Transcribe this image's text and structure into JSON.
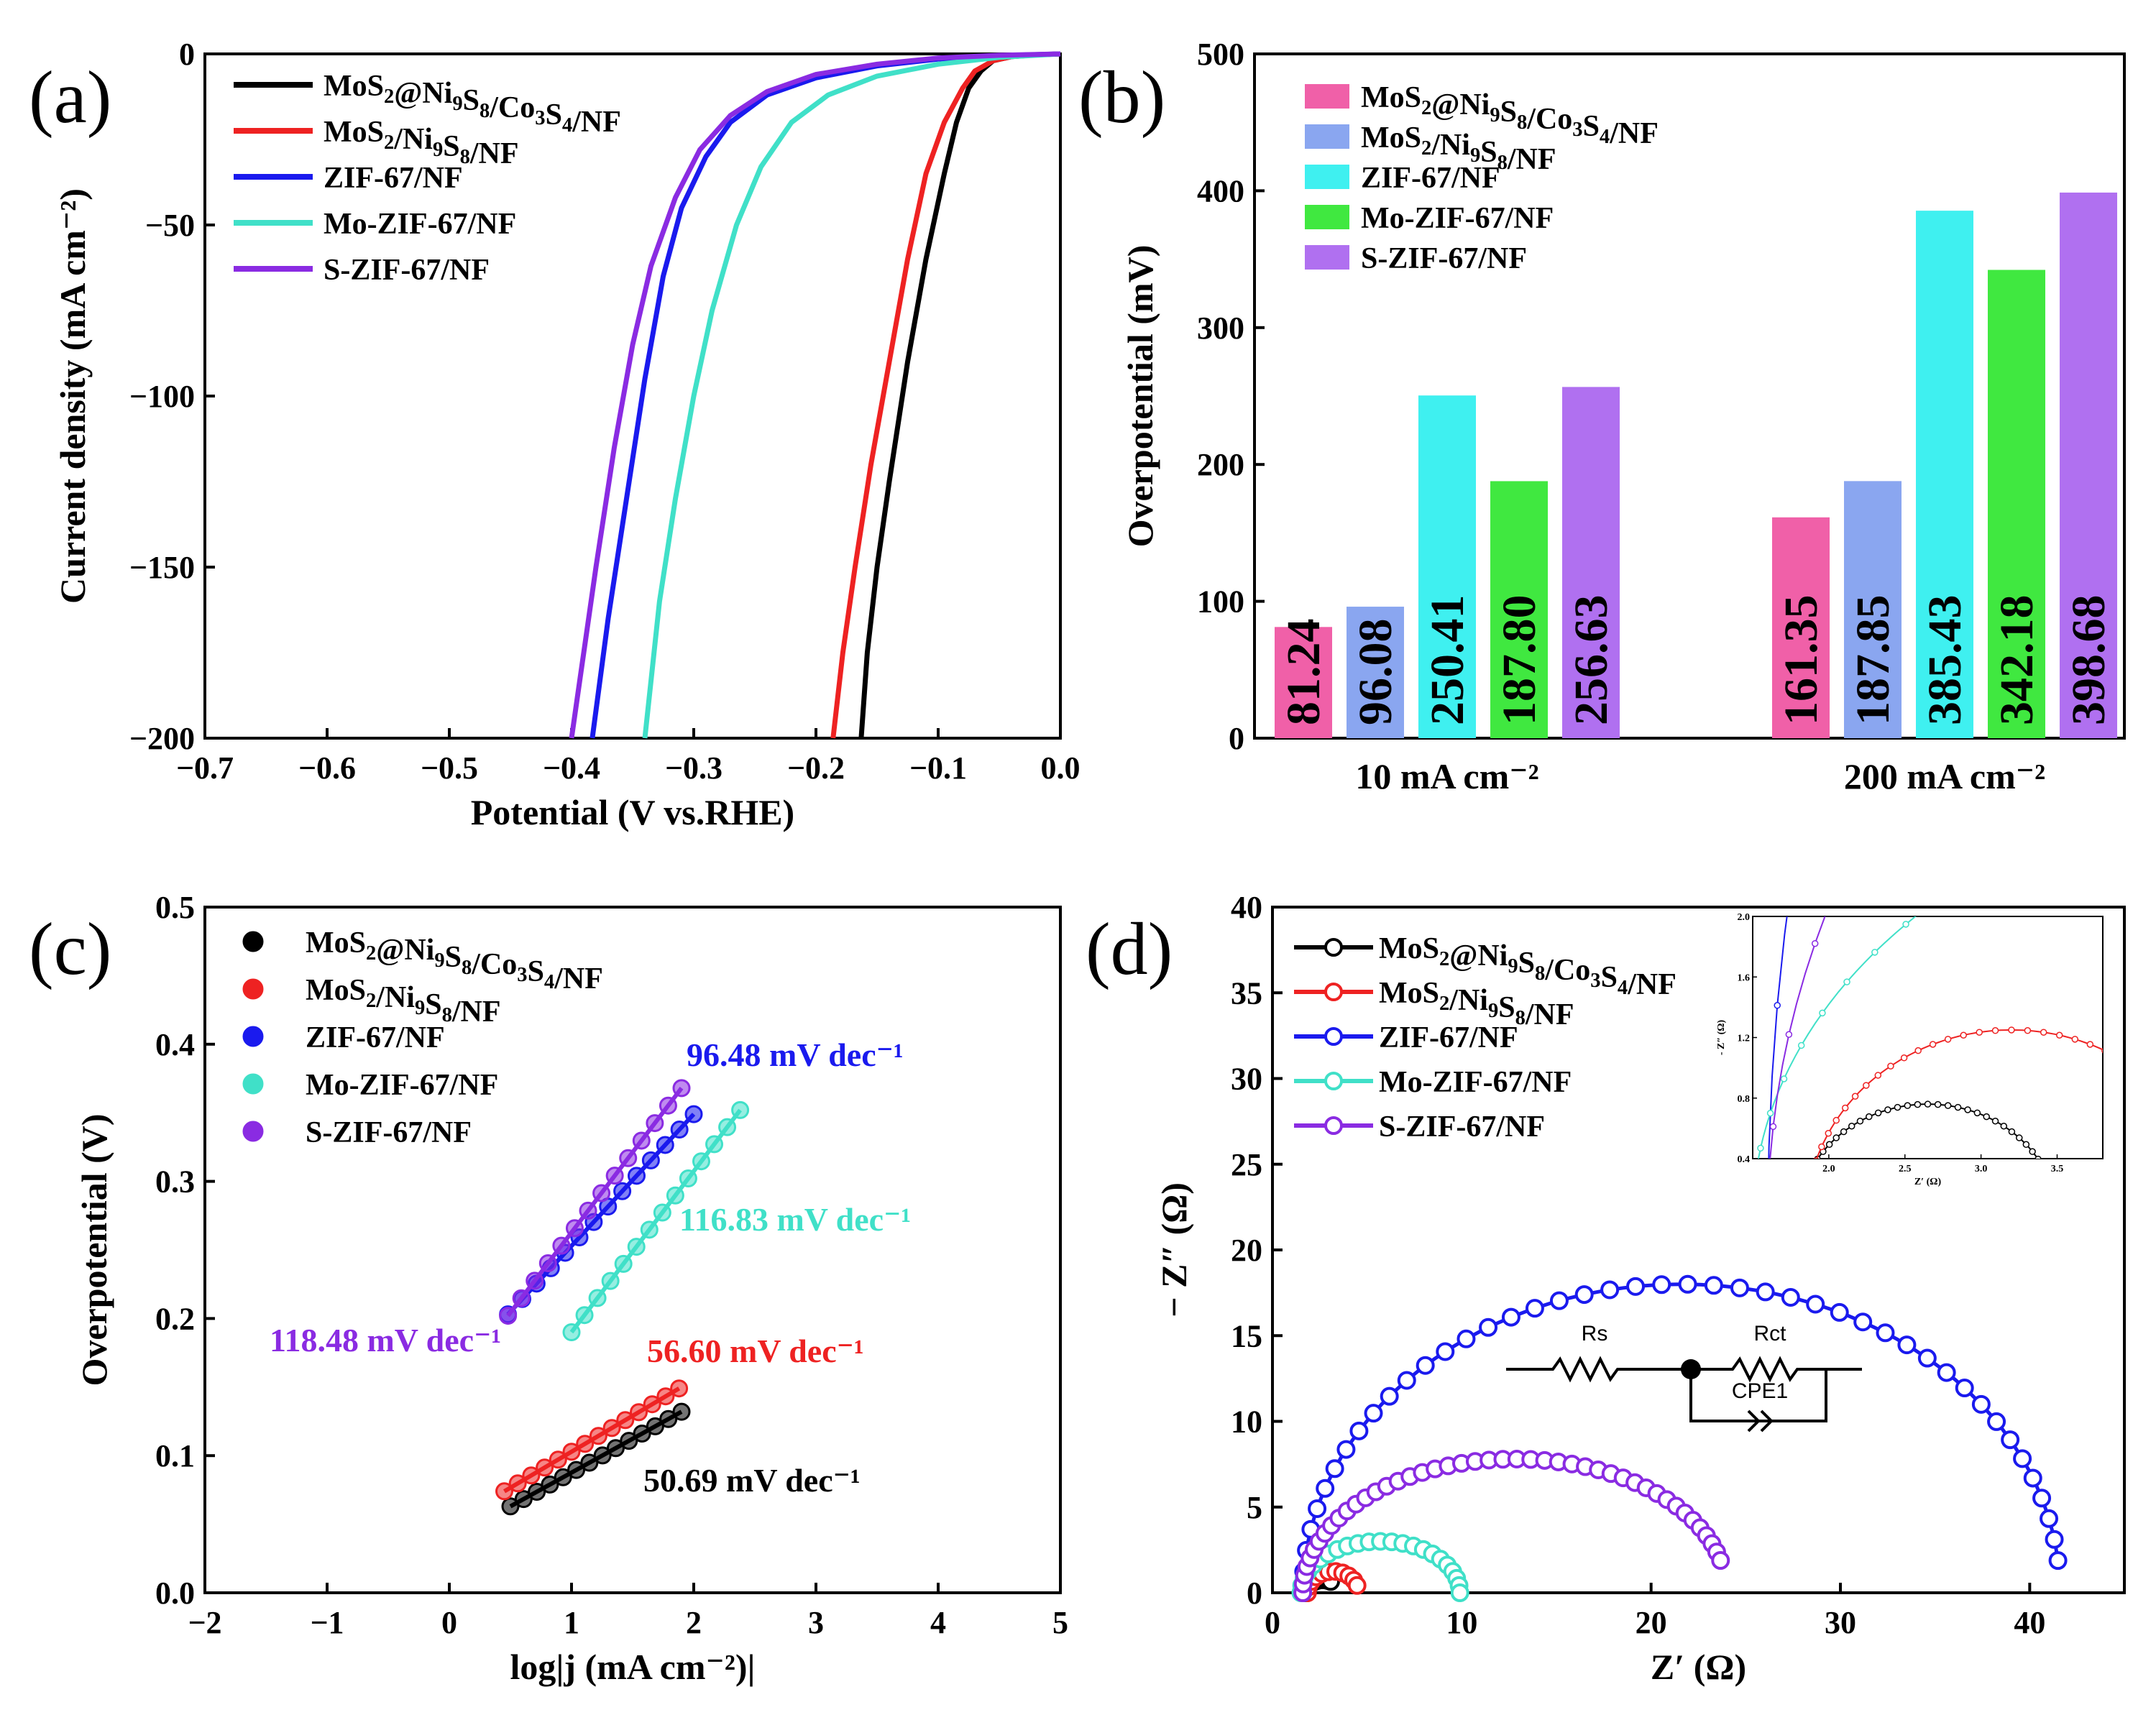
{
  "colors": {
    "black": "#000000",
    "red": "#ee2222",
    "blue": "#1a1aee",
    "cyan": "#40e0c8",
    "purple": "#8a2be2",
    "bar_pink": "#f060a8",
    "bar_blue": "#8aa6f0",
    "bar_cyan": "#3ff0f0",
    "bar_green": "#40e840",
    "bar_purple": "#b070f0"
  },
  "series_names": [
    "MoS2@Ni9S8/Co3S4/NF",
    "MoS2/Ni9S8/NF",
    "ZIF-67/NF",
    "Mo-ZIF-67/NF",
    "S-ZIF-67/NF"
  ],
  "chart_data": [
    {
      "panel": "a",
      "type": "line",
      "letter": "(a)",
      "xlabel": "Potential (V vs.RHE)",
      "ylabel": "Current density (mA cm⁻²)",
      "xlim": [
        -0.7,
        0.0
      ],
      "ylim": [
        -200,
        0
      ],
      "xticks": [
        -0.7,
        -0.6,
        -0.5,
        -0.4,
        -0.3,
        -0.2,
        -0.1,
        0.0
      ],
      "xtick_labels": [
        "−0.7",
        "−0.6",
        "−0.5",
        "−0.4",
        "−0.3",
        "−0.2",
        "−0.1",
        "0.0"
      ],
      "yticks": [
        0,
        -50,
        -100,
        -150,
        -200
      ],
      "ytick_labels": [
        "0",
        "−50",
        "−100",
        "−150",
        "−200"
      ],
      "series": [
        {
          "name": "MoS2@Ni9S8/Co3S4/NF",
          "color": "#000000",
          "points": [
            [
              0,
              0
            ],
            [
              -0.02,
              -0.3
            ],
            [
              -0.04,
              -0.8
            ],
            [
              -0.055,
              -2
            ],
            [
              -0.065,
              -5
            ],
            [
              -0.075,
              -10
            ],
            [
              -0.085,
              -20
            ],
            [
              -0.095,
              -35
            ],
            [
              -0.11,
              -60
            ],
            [
              -0.125,
              -90
            ],
            [
              -0.14,
              -125
            ],
            [
              -0.15,
              -150
            ],
            [
              -0.158,
              -175
            ],
            [
              -0.163,
              -200
            ]
          ]
        },
        {
          "name": "MoS2/Ni9S8/NF",
          "color": "#ee2222",
          "points": [
            [
              0,
              0
            ],
            [
              -0.02,
              -0.3
            ],
            [
              -0.04,
              -0.8
            ],
            [
              -0.055,
              -2
            ],
            [
              -0.07,
              -5
            ],
            [
              -0.08,
              -10
            ],
            [
              -0.095,
              -20
            ],
            [
              -0.11,
              -35
            ],
            [
              -0.125,
              -60
            ],
            [
              -0.14,
              -90
            ],
            [
              -0.155,
              -120
            ],
            [
              -0.168,
              -150
            ],
            [
              -0.178,
              -175
            ],
            [
              -0.186,
              -200
            ]
          ]
        },
        {
          "name": "ZIF-67/NF",
          "color": "#1a1aee",
          "points": [
            [
              0,
              0
            ],
            [
              -0.05,
              -0.5
            ],
            [
              -0.1,
              -1.5
            ],
            [
              -0.15,
              -3.5
            ],
            [
              -0.2,
              -7
            ],
            [
              -0.24,
              -12
            ],
            [
              -0.27,
              -20
            ],
            [
              -0.29,
              -30
            ],
            [
              -0.31,
              -45
            ],
            [
              -0.325,
              -65
            ],
            [
              -0.34,
              -95
            ],
            [
              -0.355,
              -130
            ],
            [
              -0.37,
              -165
            ],
            [
              -0.383,
              -200
            ]
          ]
        },
        {
          "name": "Mo-ZIF-67/NF",
          "color": "#40e0c8",
          "points": [
            [
              0,
              0
            ],
            [
              -0.05,
              -1
            ],
            [
              -0.1,
              -3
            ],
            [
              -0.15,
              -6.5
            ],
            [
              -0.19,
              -12
            ],
            [
              -0.22,
              -20
            ],
            [
              -0.245,
              -33
            ],
            [
              -0.265,
              -50
            ],
            [
              -0.285,
              -75
            ],
            [
              -0.3,
              -100
            ],
            [
              -0.315,
              -130
            ],
            [
              -0.328,
              -160
            ],
            [
              -0.34,
              -200
            ]
          ]
        },
        {
          "name": "S-ZIF-67/NF",
          "color": "#8a2be2",
          "points": [
            [
              0,
              0
            ],
            [
              -0.05,
              -0.4
            ],
            [
              -0.1,
              -1.2
            ],
            [
              -0.15,
              -3
            ],
            [
              -0.2,
              -6
            ],
            [
              -0.24,
              -11
            ],
            [
              -0.27,
              -18
            ],
            [
              -0.295,
              -28
            ],
            [
              -0.315,
              -42
            ],
            [
              -0.335,
              -62
            ],
            [
              -0.35,
              -85
            ],
            [
              -0.365,
              -115
            ],
            [
              -0.38,
              -150
            ],
            [
              -0.392,
              -180
            ],
            [
              -0.4,
              -200
            ]
          ]
        }
      ]
    },
    {
      "panel": "b",
      "type": "bar",
      "letter": "(b)",
      "xlabel": "",
      "ylabel": "Overpotential (mV)",
      "ylim": [
        0,
        500
      ],
      "yticks": [
        0,
        100,
        200,
        300,
        400,
        500
      ],
      "ytick_labels": [
        "0",
        "100",
        "200",
        "300",
        "400",
        "500"
      ],
      "categories": [
        "10 mA cm⁻²",
        "200 mA cm⁻²"
      ],
      "series": [
        {
          "name": "MoS2@Ni9S8/Co3S4/NF",
          "color": "#f060a8",
          "values": [
            81.24,
            161.35
          ],
          "labels": [
            "81.24",
            "161.35"
          ]
        },
        {
          "name": "MoS2/Ni9S8/NF",
          "color": "#8aa6f0",
          "values": [
            96.08,
            187.85
          ],
          "labels": [
            "96.08",
            "187.85"
          ]
        },
        {
          "name": "ZIF-67/NF",
          "color": "#3ff0f0",
          "values": [
            250.41,
            385.43
          ],
          "labels": [
            "250.41",
            "385.43"
          ]
        },
        {
          "name": "Mo-ZIF-67/NF",
          "color": "#40e840",
          "values": [
            187.8,
            342.18
          ],
          "labels": [
            "187.80",
            "342.18"
          ]
        },
        {
          "name": "S-ZIF-67/NF",
          "color": "#b070f0",
          "values": [
            256.63,
            398.68
          ],
          "labels": [
            "256.63",
            "398.68"
          ]
        }
      ]
    },
    {
      "panel": "c",
      "type": "scatter",
      "letter": "(c)",
      "xlabel": "log|j (mA cm⁻²)|",
      "ylabel": "Overpotential (V)",
      "xlim": [
        -2,
        5
      ],
      "ylim": [
        0.0,
        0.5
      ],
      "xticks": [
        -2,
        -1,
        0,
        1,
        2,
        3,
        4,
        5
      ],
      "xtick_labels": [
        "−2",
        "−1",
        "0",
        "1",
        "2",
        "3",
        "4",
        "5"
      ],
      "yticks": [
        0.0,
        0.1,
        0.2,
        0.3,
        0.4,
        0.5
      ],
      "ytick_labels": [
        "0.0",
        "0.1",
        "0.2",
        "0.3",
        "0.4",
        "0.5"
      ],
      "series": [
        {
          "name": "MoS2@Ni9S8/Co3S4/NF",
          "color": "#000000",
          "x_range": [
            0.5,
            1.9
          ],
          "y_range": [
            0.063,
            0.132
          ],
          "slope_label": "50.69   mV dec⁻¹"
        },
        {
          "name": "MoS2/Ni9S8/NF",
          "color": "#ee2222",
          "x_range": [
            0.45,
            1.88
          ],
          "y_range": [
            0.074,
            0.149
          ],
          "slope_label": "56.60  mV dec⁻¹"
        },
        {
          "name": "ZIF-67/NF",
          "color": "#1a1aee",
          "x_range": [
            0.48,
            2.0
          ],
          "y_range": [
            0.203,
            0.349
          ],
          "slope_label": "96.48 mV dec⁻¹"
        },
        {
          "name": "Mo-ZIF-67/NF",
          "color": "#40e0c8",
          "x_range": [
            1.0,
            2.38
          ],
          "y_range": [
            0.19,
            0.352
          ],
          "slope_label": "116.83 mV dec⁻¹"
        },
        {
          "name": "S-ZIF-67/NF",
          "color": "#8a2be2",
          "x_range": [
            0.48,
            1.9
          ],
          "y_range": [
            0.202,
            0.368
          ],
          "slope_label": "118.48 mV dec⁻¹"
        }
      ]
    },
    {
      "panel": "d",
      "type": "scatter",
      "letter": "(d)",
      "xlabel": "Z′ (Ω)",
      "ylabel": "− Z″ (Ω)",
      "xlim": [
        0,
        45
      ],
      "ylim": [
        0,
        40
      ],
      "xticks": [
        0,
        10,
        20,
        30,
        40
      ],
      "xtick_labels": [
        "0",
        "10",
        "20",
        "30",
        "40"
      ],
      "yticks": [
        0,
        5,
        10,
        15,
        20,
        25,
        30,
        35,
        40
      ],
      "ytick_labels": [
        "0",
        "5",
        "10",
        "15",
        "20",
        "25",
        "30",
        "35",
        "40"
      ],
      "series": [
        {
          "name": "MoS2@Ni9S8/Co3S4/NF",
          "color": "#000000",
          "center": 2.65,
          "radius": 0.85,
          "height": 0.76,
          "end_angle_deg": 120
        },
        {
          "name": "MoS2/Ni9S8/NF",
          "color": "#ee2222",
          "center": 3.2,
          "radius": 1.35,
          "height": 1.25,
          "end_angle_deg": 160
        },
        {
          "name": "ZIF-67/NF",
          "color": "#1a1aee",
          "center": 21.6,
          "radius": 20.0,
          "height": 18.0,
          "end_angle_deg": 174
        },
        {
          "name": "Mo-ZIF-67/NF",
          "color": "#40e0c8",
          "center": 5.7,
          "radius": 4.2,
          "height": 3.0,
          "end_angle_deg": 180
        },
        {
          "name": "S-ZIF-67/NF",
          "color": "#8a2be2",
          "center": 12.8,
          "radius": 11.2,
          "height": 7.8,
          "end_angle_deg": 166
        }
      ],
      "inset": {
        "xlim": [
          1.5,
          3.8
        ],
        "ylim": [
          0.4,
          2.0
        ],
        "xticks": [
          2.0,
          2.5,
          3.0,
          3.5
        ],
        "xtick_labels": [
          "2.0",
          "2.5",
          "3.0",
          "3.5"
        ],
        "yticks": [
          0.4,
          0.8,
          1.2,
          1.6,
          2.0
        ],
        "ytick_labels": [
          "0.4",
          "0.8",
          "1.2",
          "1.6",
          "2.0"
        ],
        "xlabel": "Z′ (Ω)",
        "ylabel": "- Z″ (Ω)"
      },
      "circuit": {
        "rs": "Rs",
        "rct": "Rct",
        "cpe": "CPE1"
      }
    }
  ]
}
